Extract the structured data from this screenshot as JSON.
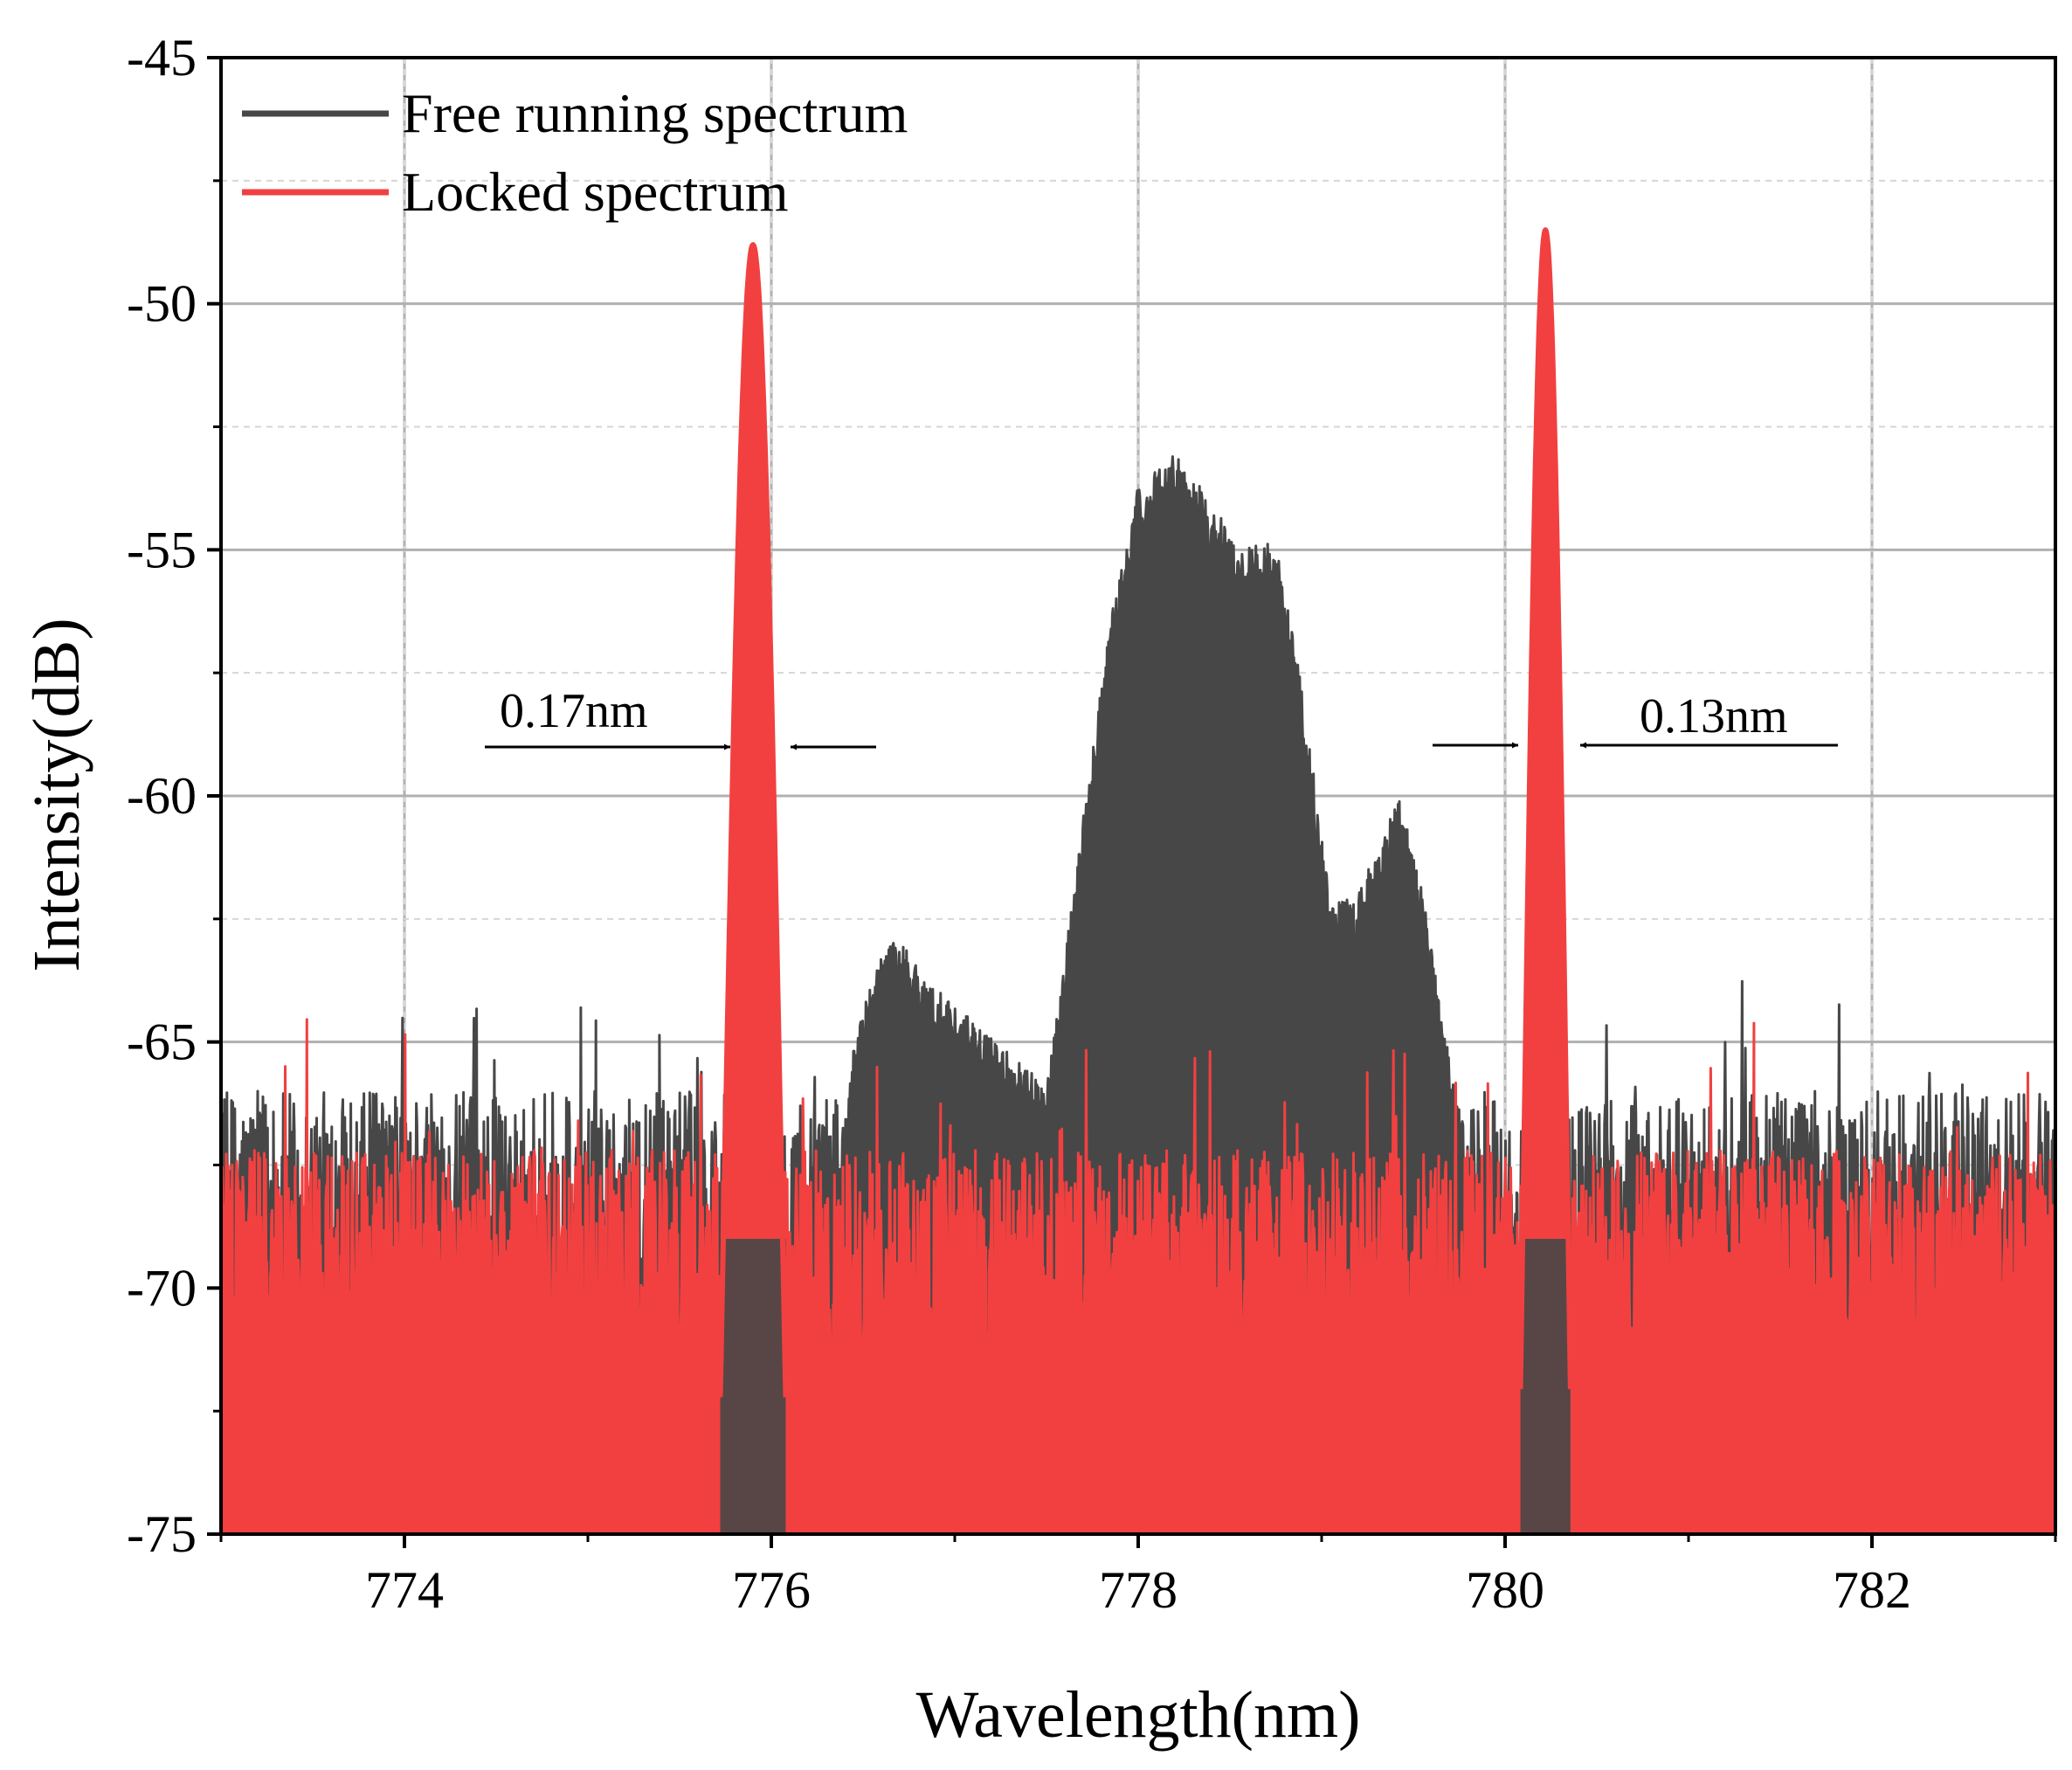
{
  "chart_data": {
    "type": "line",
    "title": "",
    "xlabel": "Wavelength(nm)",
    "ylabel": "Intensity(dB)",
    "xlim": [
      773,
      783
    ],
    "ylim": [
      -75,
      -45
    ],
    "x_ticks": [
      774,
      776,
      778,
      780,
      782
    ],
    "y_ticks": [
      -75,
      -70,
      -65,
      -60,
      -55,
      -50,
      -45
    ],
    "x_tick_labels": [
      "774",
      "776",
      "778",
      "780",
      "782"
    ],
    "y_tick_labels": [
      "-75",
      "-70",
      "-65",
      "-60",
      "-55",
      "-50",
      "-45"
    ],
    "grid": true,
    "legend_position": "top-left",
    "series": [
      {
        "name": "Free running spectrum",
        "color": "#474747",
        "noise_floor": -68.5,
        "noise_spread": 2.5,
        "envelope": {
          "x": [
            773.0,
            776.35,
            776.45,
            776.65,
            776.9,
            777.2,
            777.5,
            777.7,
            777.85,
            778.0,
            778.2,
            778.4,
            778.55,
            778.75,
            778.9,
            779.05,
            779.2,
            779.35,
            779.42,
            779.55,
            779.7,
            779.85,
            783.0
          ],
          "y": [
            -68.5,
            -68.5,
            -65.5,
            -63.3,
            -64.5,
            -65.5,
            -66.5,
            -61.0,
            -57.0,
            -54.3,
            -53.6,
            -54.6,
            -55.6,
            -55.4,
            -58.5,
            -62.8,
            -62.6,
            -61.2,
            -60.5,
            -62.5,
            -66.0,
            -68.5,
            -68.5
          ]
        }
      },
      {
        "name": "Locked spectrum",
        "color": "#f24040",
        "noise_floor": -69.5,
        "noise_spread": 2.3,
        "peaks": [
          {
            "center": 775.9,
            "peak": -48.8,
            "fwhm": 0.17
          },
          {
            "center": 780.22,
            "peak": -48.5,
            "fwhm": 0.13
          }
        ]
      }
    ],
    "annotations": [
      {
        "text": "0.17nm",
        "target": "left peak linewidth"
      },
      {
        "text": "0.13nm",
        "target": "right peak linewidth"
      }
    ]
  }
}
